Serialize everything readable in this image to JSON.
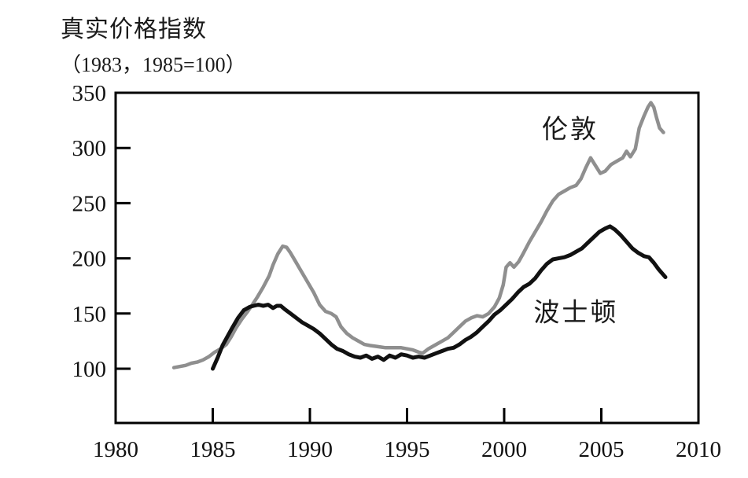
{
  "page": {
    "background": "#ffffff"
  },
  "chart_data": {
    "type": "line",
    "title": "真实价格指数",
    "subtitle": "（1983，1985=100）",
    "xlabel": "",
    "ylabel": "",
    "xlim": [
      1980,
      2010
    ],
    "ylim": [
      100,
      350
    ],
    "x_ticks": [
      1980,
      1985,
      1990,
      1995,
      2000,
      2005,
      2010
    ],
    "y_ticks": [
      100,
      150,
      200,
      250,
      300,
      350
    ],
    "grid": false,
    "legend_position": "inline-labels",
    "frame_color": "#000000",
    "series": [
      {
        "name": "伦敦",
        "color": "#8f8f8f",
        "stroke_width": 4.5,
        "label_pos": {
          "x": 2003.4,
          "y": 317
        },
        "points": [
          [
            1983.0,
            101
          ],
          [
            1983.3,
            102
          ],
          [
            1983.6,
            103
          ],
          [
            1983.9,
            105
          ],
          [
            1984.2,
            106
          ],
          [
            1984.5,
            108
          ],
          [
            1984.8,
            111
          ],
          [
            1985.1,
            115
          ],
          [
            1985.4,
            118
          ],
          [
            1985.7,
            122
          ],
          [
            1985.95,
            129
          ],
          [
            1986.2,
            137
          ],
          [
            1986.5,
            145
          ],
          [
            1986.8,
            152
          ],
          [
            1987.0,
            157
          ],
          [
            1987.3,
            165
          ],
          [
            1987.6,
            174
          ],
          [
            1987.9,
            184
          ],
          [
            1988.1,
            194
          ],
          [
            1988.35,
            204
          ],
          [
            1988.6,
            211
          ],
          [
            1988.8,
            210
          ],
          [
            1989.0,
            205
          ],
          [
            1989.3,
            196
          ],
          [
            1989.6,
            187
          ],
          [
            1989.9,
            178
          ],
          [
            1990.2,
            169
          ],
          [
            1990.5,
            158
          ],
          [
            1990.8,
            152
          ],
          [
            1991.1,
            150
          ],
          [
            1991.35,
            147
          ],
          [
            1991.6,
            138
          ],
          [
            1991.9,
            132
          ],
          [
            1992.2,
            128
          ],
          [
            1992.5,
            125
          ],
          [
            1992.8,
            122
          ],
          [
            1993.1,
            121
          ],
          [
            1993.5,
            120
          ],
          [
            1993.9,
            119
          ],
          [
            1994.3,
            119
          ],
          [
            1994.7,
            119
          ],
          [
            1995.0,
            118
          ],
          [
            1995.3,
            117
          ],
          [
            1995.6,
            115
          ],
          [
            1995.8,
            114
          ],
          [
            1996.1,
            118
          ],
          [
            1996.4,
            121
          ],
          [
            1996.8,
            125
          ],
          [
            1997.1,
            128
          ],
          [
            1997.4,
            133
          ],
          [
            1997.7,
            138
          ],
          [
            1998.0,
            143
          ],
          [
            1998.3,
            146
          ],
          [
            1998.6,
            148
          ],
          [
            1998.9,
            147
          ],
          [
            1999.2,
            150
          ],
          [
            1999.5,
            156
          ],
          [
            1999.75,
            164
          ],
          [
            1999.95,
            176
          ],
          [
            2000.1,
            192
          ],
          [
            2000.3,
            196
          ],
          [
            2000.5,
            192
          ],
          [
            2000.75,
            197
          ],
          [
            2001.0,
            205
          ],
          [
            2001.3,
            215
          ],
          [
            2001.6,
            224
          ],
          [
            2001.9,
            233
          ],
          [
            2002.2,
            243
          ],
          [
            2002.5,
            252
          ],
          [
            2002.8,
            258
          ],
          [
            2003.1,
            261
          ],
          [
            2003.4,
            264
          ],
          [
            2003.7,
            266
          ],
          [
            2003.95,
            272
          ],
          [
            2004.2,
            282
          ],
          [
            2004.45,
            291
          ],
          [
            2004.7,
            284
          ],
          [
            2004.95,
            277
          ],
          [
            2005.2,
            279
          ],
          [
            2005.5,
            285
          ],
          [
            2005.9,
            289
          ],
          [
            2006.1,
            291
          ],
          [
            2006.3,
            297
          ],
          [
            2006.5,
            292
          ],
          [
            2006.75,
            299
          ],
          [
            2006.95,
            318
          ],
          [
            2007.2,
            329
          ],
          [
            2007.4,
            337
          ],
          [
            2007.55,
            341
          ],
          [
            2007.7,
            337
          ],
          [
            2007.85,
            327
          ],
          [
            2008.0,
            318
          ],
          [
            2008.2,
            314
          ]
        ]
      },
      {
        "name": "波士顿",
        "color": "#111111",
        "stroke_width": 5,
        "label_pos": {
          "x": 2003.7,
          "y": 151
        },
        "points": [
          [
            1985.0,
            100
          ],
          [
            1985.25,
            110
          ],
          [
            1985.5,
            121
          ],
          [
            1985.75,
            129
          ],
          [
            1986.0,
            137
          ],
          [
            1986.3,
            146
          ],
          [
            1986.6,
            153
          ],
          [
            1986.9,
            156
          ],
          [
            1987.1,
            157
          ],
          [
            1987.35,
            158
          ],
          [
            1987.6,
            157
          ],
          [
            1987.85,
            158
          ],
          [
            1988.1,
            155
          ],
          [
            1988.3,
            157
          ],
          [
            1988.5,
            157
          ],
          [
            1988.7,
            154
          ],
          [
            1989.0,
            150
          ],
          [
            1989.3,
            146
          ],
          [
            1989.6,
            142
          ],
          [
            1989.9,
            139
          ],
          [
            1990.2,
            136
          ],
          [
            1990.5,
            132
          ],
          [
            1990.8,
            127
          ],
          [
            1991.1,
            122
          ],
          [
            1991.4,
            118
          ],
          [
            1991.7,
            116
          ],
          [
            1992.0,
            113
          ],
          [
            1992.3,
            111
          ],
          [
            1992.6,
            110
          ],
          [
            1992.9,
            112
          ],
          [
            1993.2,
            109
          ],
          [
            1993.5,
            111
          ],
          [
            1993.8,
            108
          ],
          [
            1994.1,
            112
          ],
          [
            1994.4,
            110
          ],
          [
            1994.7,
            113
          ],
          [
            1995.0,
            112
          ],
          [
            1995.3,
            110
          ],
          [
            1995.6,
            111
          ],
          [
            1995.9,
            110
          ],
          [
            1996.2,
            112
          ],
          [
            1996.5,
            114
          ],
          [
            1996.8,
            116
          ],
          [
            1997.1,
            118
          ],
          [
            1997.4,
            119
          ],
          [
            1997.7,
            122
          ],
          [
            1998.0,
            126
          ],
          [
            1998.3,
            129
          ],
          [
            1998.6,
            133
          ],
          [
            1998.9,
            138
          ],
          [
            1999.2,
            143
          ],
          [
            1999.5,
            149
          ],
          [
            1999.8,
            153
          ],
          [
            2000.1,
            158
          ],
          [
            2000.4,
            163
          ],
          [
            2000.7,
            169
          ],
          [
            2001.0,
            174
          ],
          [
            2001.3,
            177
          ],
          [
            2001.6,
            182
          ],
          [
            2001.9,
            189
          ],
          [
            2002.2,
            195
          ],
          [
            2002.5,
            199
          ],
          [
            2002.8,
            200
          ],
          [
            2003.1,
            201
          ],
          [
            2003.4,
            203
          ],
          [
            2003.7,
            206
          ],
          [
            2004.0,
            209
          ],
          [
            2004.3,
            214
          ],
          [
            2004.6,
            219
          ],
          [
            2004.9,
            224
          ],
          [
            2005.2,
            227
          ],
          [
            2005.45,
            229
          ],
          [
            2005.7,
            226
          ],
          [
            2006.0,
            221
          ],
          [
            2006.3,
            215
          ],
          [
            2006.6,
            209
          ],
          [
            2006.9,
            205
          ],
          [
            2007.2,
            202
          ],
          [
            2007.45,
            201
          ],
          [
            2007.7,
            196
          ],
          [
            2007.95,
            190
          ],
          [
            2008.15,
            186
          ],
          [
            2008.3,
            183
          ]
        ]
      }
    ]
  }
}
